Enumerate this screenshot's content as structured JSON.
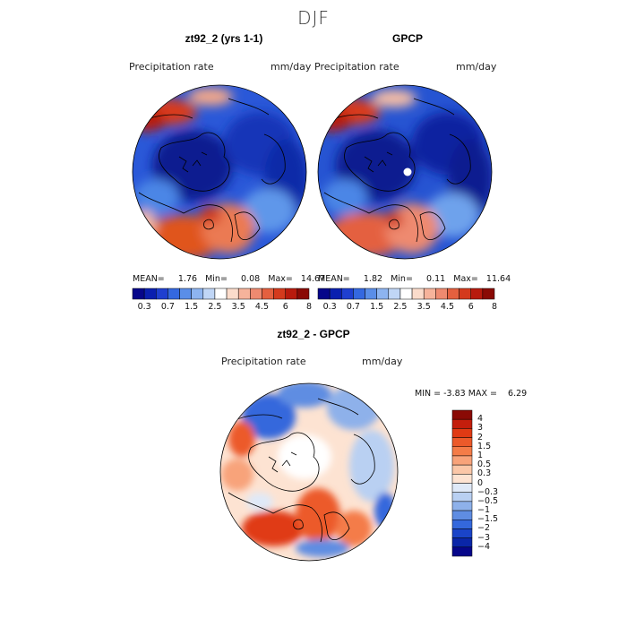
{
  "season": "DJF",
  "panels": [
    {
      "title": "zt92_2 (yrs 1-1)",
      "field_label": "Precipitation rate",
      "units": "mm/day",
      "stats": {
        "mean_label": "MEAN=",
        "mean": "1.76",
        "min_label": "Min=",
        "min": "0.08",
        "max_label": "Max=",
        "max": "14.67"
      }
    },
    {
      "title": "GPCP",
      "field_label": "Precipitation rate",
      "units": "mm/day",
      "stats": {
        "mean_label": "MEAN=",
        "mean": "1.82",
        "min_label": "Min=",
        "min": "0.11",
        "max_label": "Max=",
        "max": "11.64"
      }
    }
  ],
  "abs_colorbar": {
    "ticks": [
      "0.3",
      "0.7",
      "1.5",
      "2.5",
      "3.5",
      "4.5",
      "6",
      "8"
    ],
    "colors": [
      "#06068a",
      "#0a1fb0",
      "#1f3fd0",
      "#3468e0",
      "#5a8ee8",
      "#8db4f0",
      "#c0d6f6",
      "#ffffff",
      "#fbdccb",
      "#f6b39b",
      "#ee8a70",
      "#e4603f",
      "#d43a1d",
      "#b81a0d",
      "#8a0a05"
    ]
  },
  "diff_panel": {
    "title": "zt92_2 - GPCP",
    "field_label": "Precipitation rate",
    "units": "mm/day",
    "stats": {
      "min_label": "MIN =",
      "min": "-3.83",
      "max_label": "MAX =",
      "max": "6.29"
    }
  },
  "diff_colorbar": {
    "ticks": [
      "4",
      "3",
      "2",
      "1.5",
      "1",
      "0.5",
      "0.3",
      "0",
      "−0.3",
      "−0.5",
      "−1",
      "−1.5",
      "−2",
      "−3",
      "−4"
    ],
    "colors": [
      "#8a0a05",
      "#c41e0c",
      "#e03a14",
      "#ec5a2a",
      "#f47c48",
      "#f8a37a",
      "#fbc7a8",
      "#fde3d2",
      "#dfe9f8",
      "#b9d0f2",
      "#8eb1ea",
      "#5f8de2",
      "#3468dc",
      "#1a44c8",
      "#0a26a8",
      "#06068a"
    ]
  }
}
